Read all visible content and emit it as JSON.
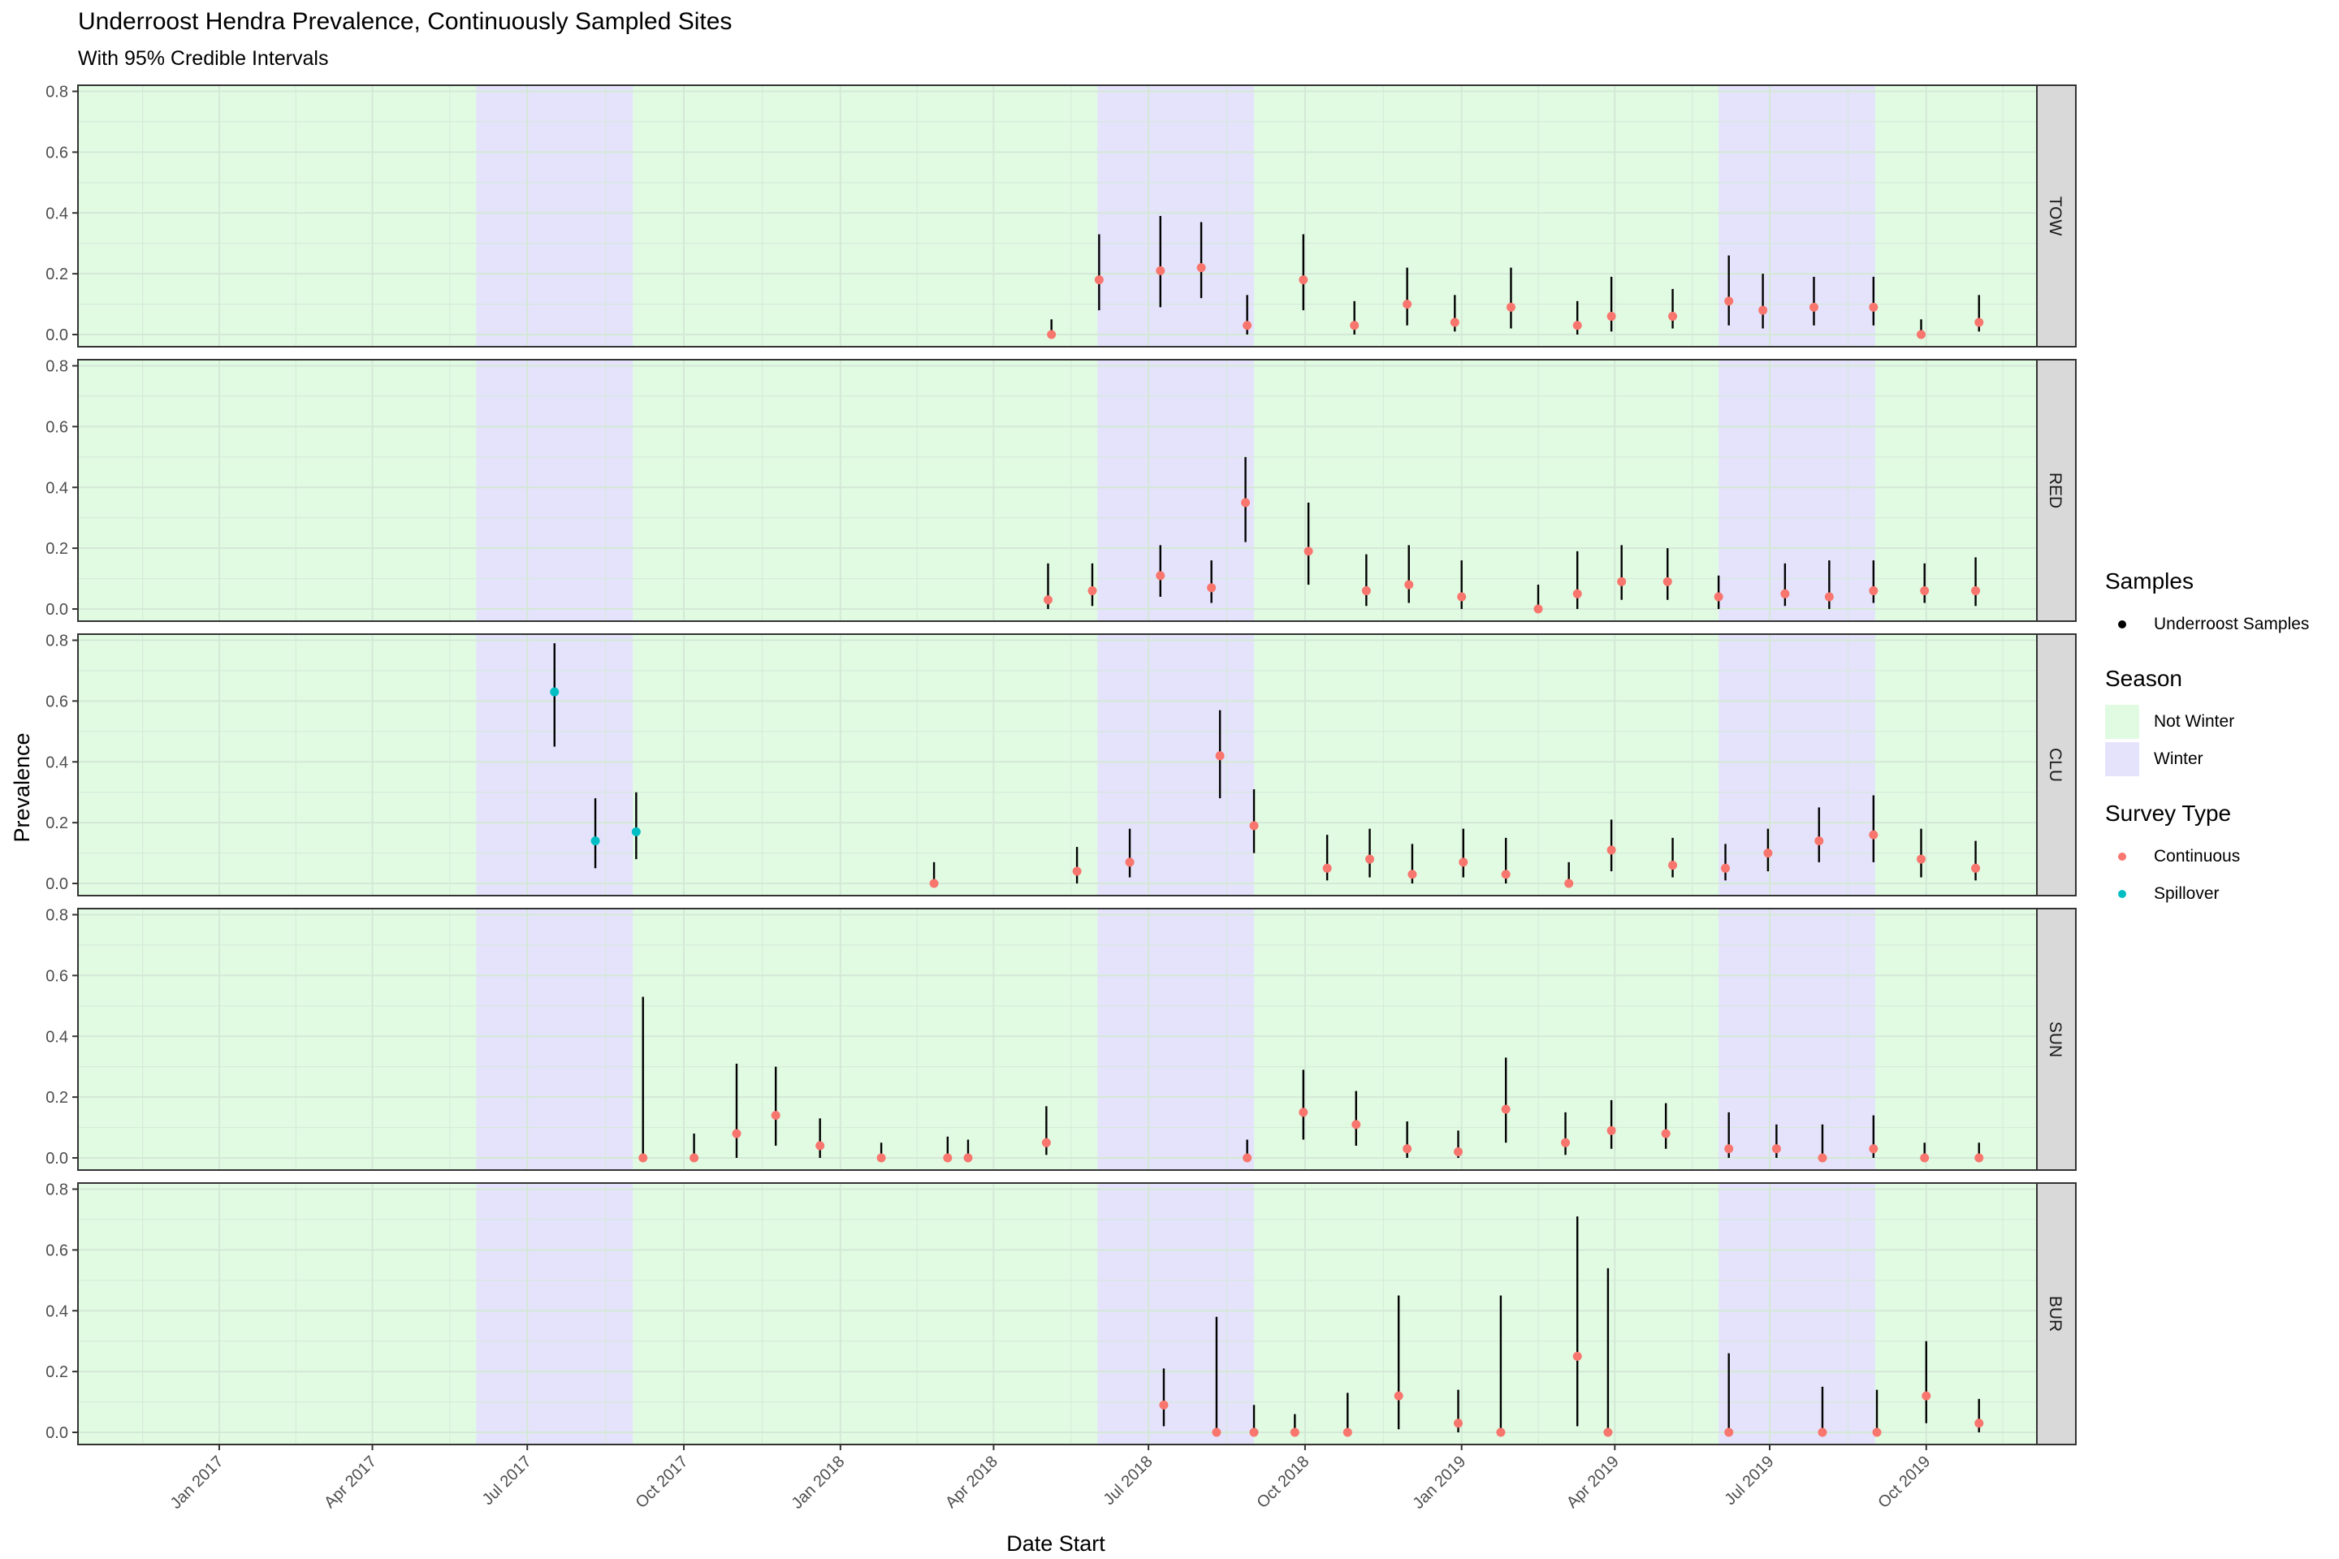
{
  "chart_data": {
    "type": "scatter",
    "title": "Underroost Hendra Prevalence, Continuously Sampled Sites",
    "subtitle": "With 95% Credible Intervals",
    "xlabel": "Date Start",
    "ylabel": "Prevalence",
    "xlim": [
      "2016-10-10",
      "2019-12-05"
    ],
    "ylim": [
      -0.04,
      0.82
    ],
    "x_ticks": [
      "2017-01-01",
      "2017-04-01",
      "2017-07-01",
      "2017-10-01",
      "2018-01-01",
      "2018-04-01",
      "2018-07-01",
      "2018-10-01",
      "2019-01-01",
      "2019-04-01",
      "2019-07-01",
      "2019-10-01"
    ],
    "x_tick_labels": [
      "Jan 2017",
      "Apr 2017",
      "Jul 2017",
      "Oct 2017",
      "Jan 2018",
      "Apr 2018",
      "Jul 2018",
      "Oct 2018",
      "Jan 2019",
      "Apr 2019",
      "Jul 2019",
      "Oct 2019"
    ],
    "y_ticks": [
      0.0,
      0.2,
      0.4,
      0.6,
      0.8
    ],
    "y_tick_labels": [
      "0.0",
      "0.2",
      "0.4",
      "0.6",
      "0.8"
    ],
    "grid": true,
    "legend_position": "right",
    "seasons": [
      {
        "season": "Winter",
        "start": "2017-06-01",
        "end": "2017-09-01"
      },
      {
        "season": "Winter",
        "start": "2018-06-01",
        "end": "2018-09-01"
      },
      {
        "season": "Winter",
        "start": "2019-06-01",
        "end": "2019-09-01"
      }
    ],
    "legend": {
      "samples": {
        "title": "Samples",
        "items": [
          {
            "label": "Underroost Samples",
            "color": "#000000"
          }
        ]
      },
      "season": {
        "title": "Season",
        "items": [
          {
            "label": "Not Winter",
            "color": "#e1fbe3"
          },
          {
            "label": "Winter",
            "color": "#e4e3fb"
          }
        ]
      },
      "survey": {
        "title": "Survey Type",
        "items": [
          {
            "label": "Continuous",
            "color": "#f8766d"
          },
          {
            "label": "Spillover",
            "color": "#00bfc4"
          }
        ]
      }
    },
    "colors": {
      "not_winter": "#e1fbe3",
      "winter": "#e4e3fb",
      "continuous": "#f8766d",
      "spillover": "#00bfc4",
      "strip": "#d9d9d9",
      "grid": "#d4e8d6"
    },
    "panels": [
      {
        "site": "TOW",
        "points": [
          {
            "date": "2018-05-05",
            "y": 0.0,
            "lo": 0.0,
            "hi": 0.05,
            "type": "Continuous"
          },
          {
            "date": "2018-06-02",
            "y": 0.18,
            "lo": 0.08,
            "hi": 0.33,
            "type": "Continuous"
          },
          {
            "date": "2018-07-08",
            "y": 0.21,
            "lo": 0.09,
            "hi": 0.39,
            "type": "Continuous"
          },
          {
            "date": "2018-08-01",
            "y": 0.22,
            "lo": 0.12,
            "hi": 0.37,
            "type": "Continuous"
          },
          {
            "date": "2018-08-28",
            "y": 0.03,
            "lo": 0.0,
            "hi": 0.13,
            "type": "Continuous"
          },
          {
            "date": "2018-09-30",
            "y": 0.18,
            "lo": 0.08,
            "hi": 0.33,
            "type": "Continuous"
          },
          {
            "date": "2018-10-30",
            "y": 0.03,
            "lo": 0.0,
            "hi": 0.11,
            "type": "Continuous"
          },
          {
            "date": "2018-11-30",
            "y": 0.1,
            "lo": 0.03,
            "hi": 0.22,
            "type": "Continuous"
          },
          {
            "date": "2018-12-28",
            "y": 0.04,
            "lo": 0.01,
            "hi": 0.13,
            "type": "Continuous"
          },
          {
            "date": "2019-01-30",
            "y": 0.09,
            "lo": 0.02,
            "hi": 0.22,
            "type": "Continuous"
          },
          {
            "date": "2019-03-10",
            "y": 0.03,
            "lo": 0.0,
            "hi": 0.11,
            "type": "Continuous"
          },
          {
            "date": "2019-03-30",
            "y": 0.06,
            "lo": 0.01,
            "hi": 0.19,
            "type": "Continuous"
          },
          {
            "date": "2019-05-05",
            "y": 0.06,
            "lo": 0.02,
            "hi": 0.15,
            "type": "Continuous"
          },
          {
            "date": "2019-06-07",
            "y": 0.11,
            "lo": 0.03,
            "hi": 0.26,
            "type": "Continuous"
          },
          {
            "date": "2019-06-27",
            "y": 0.08,
            "lo": 0.02,
            "hi": 0.2,
            "type": "Continuous"
          },
          {
            "date": "2019-07-27",
            "y": 0.09,
            "lo": 0.03,
            "hi": 0.19,
            "type": "Continuous"
          },
          {
            "date": "2019-08-31",
            "y": 0.09,
            "lo": 0.03,
            "hi": 0.19,
            "type": "Continuous"
          },
          {
            "date": "2019-09-28",
            "y": 0.0,
            "lo": 0.0,
            "hi": 0.05,
            "type": "Continuous"
          },
          {
            "date": "2019-11-01",
            "y": 0.04,
            "lo": 0.01,
            "hi": 0.13,
            "type": "Continuous"
          }
        ]
      },
      {
        "site": "RED",
        "points": [
          {
            "date": "2018-05-03",
            "y": 0.03,
            "lo": 0.0,
            "hi": 0.15,
            "type": "Continuous"
          },
          {
            "date": "2018-05-29",
            "y": 0.06,
            "lo": 0.01,
            "hi": 0.15,
            "type": "Continuous"
          },
          {
            "date": "2018-07-08",
            "y": 0.11,
            "lo": 0.04,
            "hi": 0.21,
            "type": "Continuous"
          },
          {
            "date": "2018-08-07",
            "y": 0.07,
            "lo": 0.02,
            "hi": 0.16,
            "type": "Continuous"
          },
          {
            "date": "2018-08-27",
            "y": 0.35,
            "lo": 0.22,
            "hi": 0.5,
            "type": "Continuous"
          },
          {
            "date": "2018-10-03",
            "y": 0.19,
            "lo": 0.08,
            "hi": 0.35,
            "type": "Continuous"
          },
          {
            "date": "2018-11-06",
            "y": 0.06,
            "lo": 0.01,
            "hi": 0.18,
            "type": "Continuous"
          },
          {
            "date": "2018-12-01",
            "y": 0.08,
            "lo": 0.02,
            "hi": 0.21,
            "type": "Continuous"
          },
          {
            "date": "2019-01-01",
            "y": 0.04,
            "lo": 0.0,
            "hi": 0.16,
            "type": "Continuous"
          },
          {
            "date": "2019-02-15",
            "y": 0.0,
            "lo": 0.0,
            "hi": 0.08,
            "type": "Continuous"
          },
          {
            "date": "2019-03-10",
            "y": 0.05,
            "lo": 0.0,
            "hi": 0.19,
            "type": "Continuous"
          },
          {
            "date": "2019-04-05",
            "y": 0.09,
            "lo": 0.03,
            "hi": 0.21,
            "type": "Continuous"
          },
          {
            "date": "2019-05-02",
            "y": 0.09,
            "lo": 0.03,
            "hi": 0.2,
            "type": "Continuous"
          },
          {
            "date": "2019-06-01",
            "y": 0.04,
            "lo": 0.0,
            "hi": 0.11,
            "type": "Continuous"
          },
          {
            "date": "2019-07-10",
            "y": 0.05,
            "lo": 0.01,
            "hi": 0.15,
            "type": "Continuous"
          },
          {
            "date": "2019-08-05",
            "y": 0.04,
            "lo": 0.0,
            "hi": 0.16,
            "type": "Continuous"
          },
          {
            "date": "2019-08-31",
            "y": 0.06,
            "lo": 0.02,
            "hi": 0.16,
            "type": "Continuous"
          },
          {
            "date": "2019-09-30",
            "y": 0.06,
            "lo": 0.02,
            "hi": 0.15,
            "type": "Continuous"
          },
          {
            "date": "2019-10-30",
            "y": 0.06,
            "lo": 0.01,
            "hi": 0.17,
            "type": "Continuous"
          }
        ]
      },
      {
        "site": "CLU",
        "points": [
          {
            "date": "2017-07-17",
            "y": 0.63,
            "lo": 0.45,
            "hi": 0.79,
            "type": "Spillover"
          },
          {
            "date": "2017-08-10",
            "y": 0.14,
            "lo": 0.05,
            "hi": 0.28,
            "type": "Spillover"
          },
          {
            "date": "2017-09-03",
            "y": 0.17,
            "lo": 0.08,
            "hi": 0.3,
            "type": "Spillover"
          },
          {
            "date": "2018-02-25",
            "y": 0.0,
            "lo": 0.0,
            "hi": 0.07,
            "type": "Continuous"
          },
          {
            "date": "2018-05-20",
            "y": 0.04,
            "lo": 0.0,
            "hi": 0.12,
            "type": "Continuous"
          },
          {
            "date": "2018-06-20",
            "y": 0.07,
            "lo": 0.02,
            "hi": 0.18,
            "type": "Continuous"
          },
          {
            "date": "2018-08-12",
            "y": 0.42,
            "lo": 0.28,
            "hi": 0.57,
            "type": "Continuous"
          },
          {
            "date": "2018-09-01",
            "y": 0.19,
            "lo": 0.1,
            "hi": 0.31,
            "type": "Continuous"
          },
          {
            "date": "2018-10-14",
            "y": 0.05,
            "lo": 0.01,
            "hi": 0.16,
            "type": "Continuous"
          },
          {
            "date": "2018-11-08",
            "y": 0.08,
            "lo": 0.02,
            "hi": 0.18,
            "type": "Continuous"
          },
          {
            "date": "2018-12-03",
            "y": 0.03,
            "lo": 0.0,
            "hi": 0.13,
            "type": "Continuous"
          },
          {
            "date": "2019-01-02",
            "y": 0.07,
            "lo": 0.02,
            "hi": 0.18,
            "type": "Continuous"
          },
          {
            "date": "2019-01-27",
            "y": 0.03,
            "lo": 0.0,
            "hi": 0.15,
            "type": "Continuous"
          },
          {
            "date": "2019-03-05",
            "y": 0.0,
            "lo": 0.0,
            "hi": 0.07,
            "type": "Continuous"
          },
          {
            "date": "2019-03-30",
            "y": 0.11,
            "lo": 0.04,
            "hi": 0.21,
            "type": "Continuous"
          },
          {
            "date": "2019-05-05",
            "y": 0.06,
            "lo": 0.02,
            "hi": 0.15,
            "type": "Continuous"
          },
          {
            "date": "2019-06-05",
            "y": 0.05,
            "lo": 0.01,
            "hi": 0.13,
            "type": "Continuous"
          },
          {
            "date": "2019-06-30",
            "y": 0.1,
            "lo": 0.04,
            "hi": 0.18,
            "type": "Continuous"
          },
          {
            "date": "2019-07-30",
            "y": 0.14,
            "lo": 0.07,
            "hi": 0.25,
            "type": "Continuous"
          },
          {
            "date": "2019-08-31",
            "y": 0.16,
            "lo": 0.07,
            "hi": 0.29,
            "type": "Continuous"
          },
          {
            "date": "2019-09-28",
            "y": 0.08,
            "lo": 0.02,
            "hi": 0.18,
            "type": "Continuous"
          },
          {
            "date": "2019-10-30",
            "y": 0.05,
            "lo": 0.01,
            "hi": 0.14,
            "type": "Continuous"
          }
        ]
      },
      {
        "site": "SUN",
        "points": [
          {
            "date": "2017-09-07",
            "y": 0.0,
            "lo": 0.0,
            "hi": 0.53,
            "type": "Continuous"
          },
          {
            "date": "2017-10-07",
            "y": 0.0,
            "lo": 0.0,
            "hi": 0.08,
            "type": "Continuous"
          },
          {
            "date": "2017-11-01",
            "y": 0.08,
            "lo": 0.0,
            "hi": 0.31,
            "type": "Continuous"
          },
          {
            "date": "2017-11-24",
            "y": 0.14,
            "lo": 0.04,
            "hi": 0.3,
            "type": "Continuous"
          },
          {
            "date": "2017-12-20",
            "y": 0.04,
            "lo": 0.0,
            "hi": 0.13,
            "type": "Continuous"
          },
          {
            "date": "2018-01-25",
            "y": 0.0,
            "lo": 0.0,
            "hi": 0.05,
            "type": "Continuous"
          },
          {
            "date": "2018-03-05",
            "y": 0.0,
            "lo": 0.0,
            "hi": 0.07,
            "type": "Continuous"
          },
          {
            "date": "2018-03-17",
            "y": 0.0,
            "lo": 0.0,
            "hi": 0.06,
            "type": "Continuous"
          },
          {
            "date": "2018-05-02",
            "y": 0.05,
            "lo": 0.01,
            "hi": 0.17,
            "type": "Continuous"
          },
          {
            "date": "2018-08-28",
            "y": 0.0,
            "lo": 0.0,
            "hi": 0.06,
            "type": "Continuous"
          },
          {
            "date": "2018-09-30",
            "y": 0.15,
            "lo": 0.06,
            "hi": 0.29,
            "type": "Continuous"
          },
          {
            "date": "2018-10-31",
            "y": 0.11,
            "lo": 0.04,
            "hi": 0.22,
            "type": "Continuous"
          },
          {
            "date": "2018-11-30",
            "y": 0.03,
            "lo": 0.0,
            "hi": 0.12,
            "type": "Continuous"
          },
          {
            "date": "2018-12-30",
            "y": 0.02,
            "lo": 0.0,
            "hi": 0.09,
            "type": "Continuous"
          },
          {
            "date": "2019-01-27",
            "y": 0.16,
            "lo": 0.05,
            "hi": 0.33,
            "type": "Continuous"
          },
          {
            "date": "2019-03-03",
            "y": 0.05,
            "lo": 0.01,
            "hi": 0.15,
            "type": "Continuous"
          },
          {
            "date": "2019-03-30",
            "y": 0.09,
            "lo": 0.03,
            "hi": 0.19,
            "type": "Continuous"
          },
          {
            "date": "2019-05-01",
            "y": 0.08,
            "lo": 0.03,
            "hi": 0.18,
            "type": "Continuous"
          },
          {
            "date": "2019-06-07",
            "y": 0.03,
            "lo": 0.0,
            "hi": 0.15,
            "type": "Continuous"
          },
          {
            "date": "2019-07-05",
            "y": 0.03,
            "lo": 0.0,
            "hi": 0.11,
            "type": "Continuous"
          },
          {
            "date": "2019-08-01",
            "y": 0.0,
            "lo": 0.0,
            "hi": 0.11,
            "type": "Continuous"
          },
          {
            "date": "2019-08-31",
            "y": 0.03,
            "lo": 0.0,
            "hi": 0.14,
            "type": "Continuous"
          },
          {
            "date": "2019-09-30",
            "y": 0.0,
            "lo": 0.0,
            "hi": 0.05,
            "type": "Continuous"
          },
          {
            "date": "2019-11-01",
            "y": 0.0,
            "lo": 0.0,
            "hi": 0.05,
            "type": "Continuous"
          }
        ]
      },
      {
        "site": "BUR",
        "points": [
          {
            "date": "2018-07-10",
            "y": 0.09,
            "lo": 0.02,
            "hi": 0.21,
            "type": "Continuous"
          },
          {
            "date": "2018-08-10",
            "y": 0.0,
            "lo": 0.0,
            "hi": 0.38,
            "type": "Continuous"
          },
          {
            "date": "2018-09-01",
            "y": 0.0,
            "lo": 0.0,
            "hi": 0.09,
            "type": "Continuous"
          },
          {
            "date": "2018-09-25",
            "y": 0.0,
            "lo": 0.0,
            "hi": 0.06,
            "type": "Continuous"
          },
          {
            "date": "2018-10-26",
            "y": 0.0,
            "lo": 0.0,
            "hi": 0.13,
            "type": "Continuous"
          },
          {
            "date": "2018-11-25",
            "y": 0.12,
            "lo": 0.01,
            "hi": 0.45,
            "type": "Continuous"
          },
          {
            "date": "2018-12-30",
            "y": 0.03,
            "lo": 0.0,
            "hi": 0.14,
            "type": "Continuous"
          },
          {
            "date": "2019-01-24",
            "y": 0.0,
            "lo": 0.0,
            "hi": 0.45,
            "type": "Continuous"
          },
          {
            "date": "2019-03-10",
            "y": 0.25,
            "lo": 0.02,
            "hi": 0.71,
            "type": "Continuous"
          },
          {
            "date": "2019-03-28",
            "y": 0.0,
            "lo": 0.0,
            "hi": 0.54,
            "type": "Continuous"
          },
          {
            "date": "2019-06-07",
            "y": 0.0,
            "lo": 0.0,
            "hi": 0.26,
            "type": "Continuous"
          },
          {
            "date": "2019-08-01",
            "y": 0.0,
            "lo": 0.0,
            "hi": 0.15,
            "type": "Continuous"
          },
          {
            "date": "2019-09-02",
            "y": 0.0,
            "lo": 0.0,
            "hi": 0.14,
            "type": "Continuous"
          },
          {
            "date": "2019-10-01",
            "y": 0.12,
            "lo": 0.03,
            "hi": 0.3,
            "type": "Continuous"
          },
          {
            "date": "2019-11-01",
            "y": 0.03,
            "lo": 0.0,
            "hi": 0.11,
            "type": "Continuous"
          }
        ]
      }
    ]
  }
}
